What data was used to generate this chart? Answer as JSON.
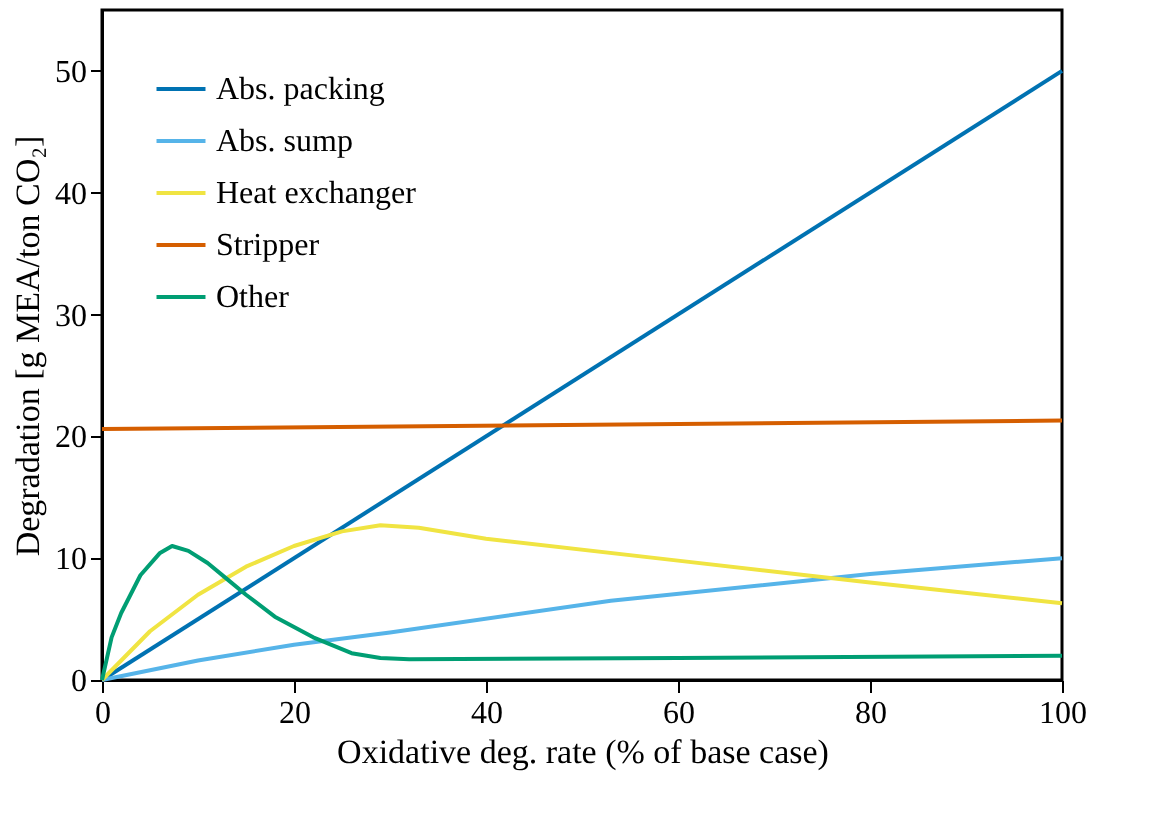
{
  "chart_data": {
    "type": "line",
    "xlabel": "Oxidative deg. rate (% of base case)",
    "ylabel": "Degradation [g MEA/ton CO₂]",
    "xlim": [
      0,
      100
    ],
    "ylim": [
      0,
      55
    ],
    "xticks": [
      0,
      20,
      40,
      60,
      80,
      100
    ],
    "yticks": [
      0,
      10,
      20,
      30,
      40,
      50
    ],
    "grid": false,
    "legend": "top left",
    "marker": "none",
    "line_style": "solid",
    "series": [
      {
        "name": "Abs. packing",
        "color": "#0072b2",
        "x": [
          0,
          100
        ],
        "values": [
          0,
          50
        ]
      },
      {
        "name": "Abs. sump",
        "color": "#56b4e9",
        "x": [
          0,
          10,
          20,
          30,
          53,
          80,
          100
        ],
        "values": [
          0,
          1.6,
          2.9,
          3.9,
          6.5,
          8.7,
          10
        ]
      },
      {
        "name": "Heat exchanger",
        "color": "#f0e442",
        "x": [
          0,
          5,
          10,
          15,
          20,
          25,
          29,
          33,
          40,
          60,
          80,
          100
        ],
        "values": [
          0,
          4,
          7,
          9.3,
          11,
          12.2,
          12.7,
          12.5,
          11.6,
          9.8,
          8,
          6.3
        ]
      },
      {
        "name": "Stripper",
        "color": "#d55e00",
        "x": [
          0,
          100
        ],
        "values": [
          20.6,
          21.3
        ]
      },
      {
        "name": "Other",
        "color": "#009e73",
        "x": [
          0,
          1,
          2,
          4,
          6,
          7.3,
          9,
          11,
          13,
          15,
          18,
          22,
          26,
          29,
          32,
          60,
          100
        ],
        "values": [
          0,
          3.5,
          5.5,
          8.6,
          10.4,
          11,
          10.6,
          9.6,
          8.3,
          7,
          5.2,
          3.5,
          2.2,
          1.8,
          1.7,
          1.8,
          2.0
        ]
      }
    ]
  }
}
